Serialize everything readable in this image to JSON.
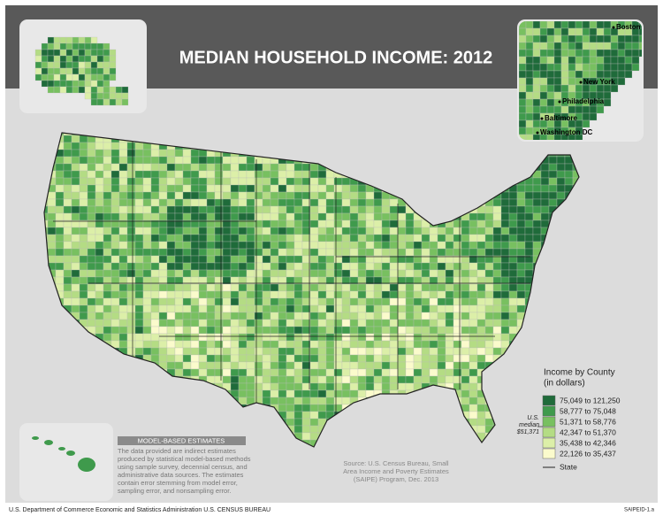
{
  "header": {
    "title": "MEDIAN HOUSEHOLD INCOME: 2012"
  },
  "inset": {
    "cities": [
      "Boston",
      "New York",
      "Philadelphia",
      "Baltimore",
      "Washington DC"
    ]
  },
  "legend": {
    "title": [
      "Income by County",
      "(in dollars)"
    ],
    "items": [
      {
        "label": "75,049 to 121,250",
        "color": "#1f6b3a"
      },
      {
        "label": "58,777 to 75,048",
        "color": "#3f9a4c"
      },
      {
        "label": "51,371 to 58,776",
        "color": "#78c060"
      },
      {
        "label": "42,347 to 51,370",
        "color": "#b4dc84"
      },
      {
        "label": "35,438 to 42,346",
        "color": "#dcefa8"
      },
      {
        "label": "22,126 to 35,437",
        "color": "#fbfbcc"
      }
    ],
    "state": "State",
    "median": [
      "U.S.",
      "median",
      "$51,371"
    ]
  },
  "note": {
    "heading": "MODEL-BASED ESTIMATES",
    "lines": [
      "The data provided are indirect estimates",
      "produced by statistical model-based methods",
      "using sample survey, decennial census, and",
      "administrative data sources. The estimates",
      "contain error stemming from model error,",
      "sampling error, and nonsampling error."
    ]
  },
  "source": {
    "lines": [
      "Source: U.S. Census Bureau, Small",
      "Area Income and Poverty Estimates",
      "(SAIPE) Program, Dec. 2013"
    ]
  },
  "footer": {
    "left": "U.S. Department of Commerce  Economic and Statistics Administration  U.S. CENSUS BUREAU",
    "right": "SAIPEID-1.a"
  }
}
